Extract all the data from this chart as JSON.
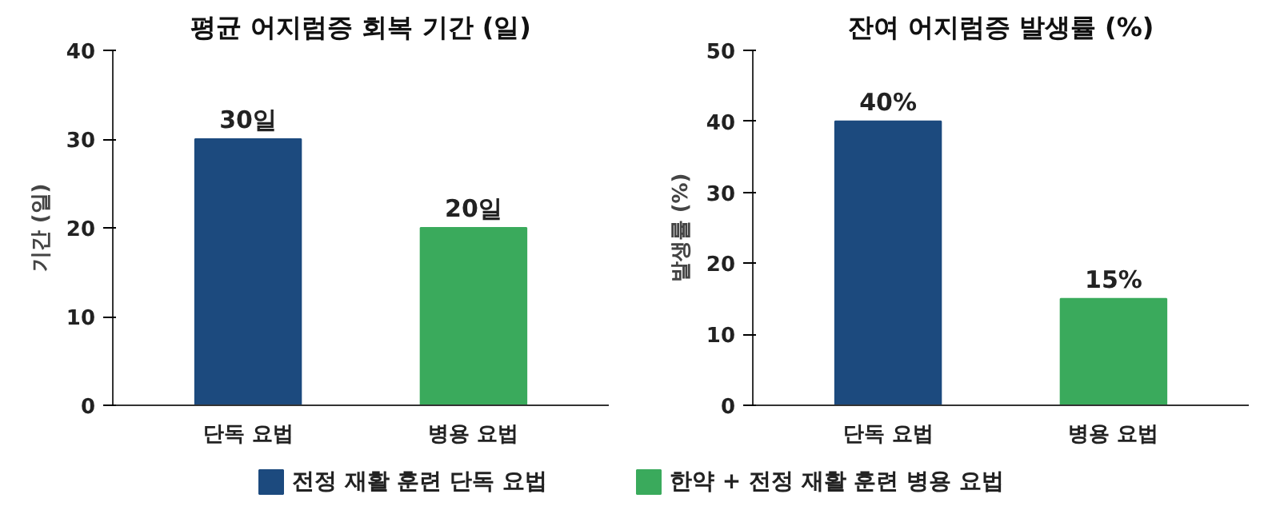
{
  "chart_data": [
    {
      "type": "bar",
      "title": "평균 어지럼증 회복 기간 (일)",
      "ylabel": "기간 (일)",
      "categories": [
        "단독 요법",
        "병용 요법"
      ],
      "ylim": [
        0,
        40
      ],
      "yticks": [
        0,
        10,
        20,
        30,
        40
      ],
      "grid": false,
      "legend": "bottom",
      "series": [
        {
          "name": "전정 재활 훈련 단독 요법",
          "color": "#1c4a7e",
          "values": [
            30,
            null
          ],
          "value_labels": [
            "30일",
            null
          ]
        },
        {
          "name": "한약 + 전정 재활 훈련 병용 요법",
          "color": "#3aaa5c",
          "values": [
            null,
            20
          ],
          "value_labels": [
            null,
            "20일"
          ]
        }
      ]
    },
    {
      "type": "bar",
      "title": "잔여 어지럼증 발생률 (%)",
      "ylabel": "발생률 (%)",
      "categories": [
        "단독 요법",
        "병용 요법"
      ],
      "ylim": [
        0,
        50
      ],
      "yticks": [
        0,
        10,
        20,
        30,
        40,
        50
      ],
      "grid": false,
      "series": [
        {
          "color": "#1c4a7e",
          "values": [
            40,
            null
          ],
          "value_labels": [
            "40%",
            null
          ]
        },
        {
          "color": "#3aaa5c",
          "values": [
            null,
            15
          ],
          "value_labels": [
            null,
            "15%"
          ]
        }
      ]
    }
  ]
}
